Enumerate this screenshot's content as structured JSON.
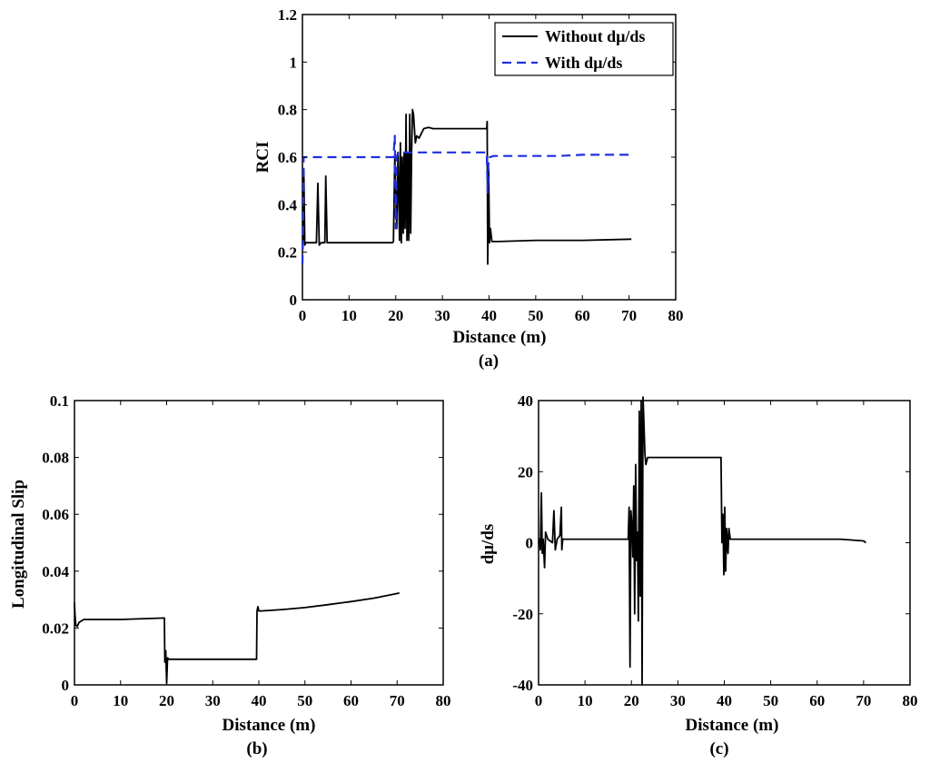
{
  "chart_data": [
    {
      "id": "a",
      "type": "line",
      "caption": "(a)",
      "xlabel": "Distance (m)",
      "ylabel": "RCI",
      "xlim": [
        0,
        80
      ],
      "ylim": [
        0,
        1.2
      ],
      "xticks": [
        0,
        10,
        20,
        30,
        40,
        50,
        60,
        70,
        80
      ],
      "yticks": [
        0,
        0.2,
        0.4,
        0.6,
        0.8,
        1,
        1.2
      ],
      "ytick_labels": [
        "0",
        "0.2",
        "0.4",
        "0.6",
        "0.8",
        "1",
        "1.2"
      ],
      "legend": {
        "position": "top-right"
      },
      "series": [
        {
          "name": "Without dμ/ds",
          "style": "solid",
          "color": "#000000",
          "x": [
            0,
            0.2,
            0.3,
            0.5,
            0.7,
            2,
            3,
            3.3,
            3.6,
            4,
            4.8,
            5,
            5.3,
            6,
            10,
            15,
            19.3,
            19.5,
            19.8,
            20.2,
            20.5,
            20.8,
            21,
            21.2,
            21.4,
            21.6,
            21.8,
            22,
            22.2,
            22.4,
            22.6,
            22.8,
            23,
            23.2,
            23.4,
            23.6,
            23.8,
            24,
            24.2,
            24.5,
            25,
            25.5,
            26,
            27,
            28,
            30,
            35,
            39.5,
            39.6,
            39.7,
            39.9,
            40.1,
            40.3,
            40.6,
            41,
            42,
            50,
            60,
            70.5
          ],
          "y": [
            0.24,
            0.26,
            0.55,
            0.23,
            0.24,
            0.24,
            0.24,
            0.49,
            0.23,
            0.24,
            0.24,
            0.52,
            0.24,
            0.24,
            0.24,
            0.24,
            0.24,
            0.245,
            0.6,
            0.3,
            0.62,
            0.25,
            0.66,
            0.24,
            0.6,
            0.28,
            0.62,
            0.3,
            0.78,
            0.25,
            0.62,
            0.25,
            0.78,
            0.28,
            0.62,
            0.8,
            0.78,
            0.72,
            0.66,
            0.69,
            0.68,
            0.7,
            0.72,
            0.725,
            0.72,
            0.72,
            0.72,
            0.72,
            0.75,
            0.15,
            0.55,
            0.24,
            0.3,
            0.245,
            0.245,
            0.245,
            0.25,
            0.25,
            0.255
          ]
        },
        {
          "name": "With dμ/ds",
          "style": "dashed",
          "color": "#1f2fe0",
          "x": [
            0,
            0.15,
            0.25,
            0.3,
            0.5,
            5,
            10,
            15,
            19.5,
            19.8,
            20,
            20.2,
            20.5,
            25,
            30,
            35,
            39.5,
            39.7,
            39.9,
            40.2,
            41,
            45,
            50,
            55,
            60,
            65,
            70.5
          ],
          "y": [
            0.15,
            0.3,
            0.6,
            0.6,
            0.6,
            0.6,
            0.6,
            0.6,
            0.6,
            0.69,
            0.3,
            0.6,
            0.62,
            0.62,
            0.62,
            0.62,
            0.62,
            0.45,
            0.6,
            0.6,
            0.605,
            0.605,
            0.605,
            0.605,
            0.61,
            0.61,
            0.61
          ]
        }
      ]
    },
    {
      "id": "b",
      "type": "line",
      "caption": "(b)",
      "xlabel": "Distance (m)",
      "ylabel": "Longitudinal Slip",
      "xlim": [
        0,
        80
      ],
      "ylim": [
        0,
        0.1
      ],
      "xticks": [
        0,
        10,
        20,
        30,
        40,
        50,
        60,
        70,
        80
      ],
      "yticks": [
        0,
        0.02,
        0.04,
        0.06,
        0.08,
        0.1
      ],
      "ytick_labels": [
        "0",
        "0.02",
        "0.04",
        "0.06",
        "0.08",
        "0.1"
      ],
      "series": [
        {
          "name": "Longitudinal Slip",
          "style": "solid",
          "color": "#000000",
          "x": [
            0,
            0.1,
            0.3,
            0.6,
            1,
            2,
            5,
            10,
            15,
            19.5,
            19.6,
            19.8,
            20,
            20.2,
            20.5,
            21,
            25,
            30,
            35,
            39.5,
            39.6,
            39.8,
            40,
            40.5,
            45,
            50,
            55,
            60,
            65,
            70.5
          ],
          "y": [
            0.029,
            0.025,
            0.021,
            0.0205,
            0.022,
            0.023,
            0.023,
            0.023,
            0.0233,
            0.0235,
            0.008,
            0.012,
            0.0005,
            0.0095,
            0.009,
            0.009,
            0.009,
            0.009,
            0.009,
            0.009,
            0.026,
            0.0275,
            0.026,
            0.026,
            0.0265,
            0.0272,
            0.0282,
            0.0293,
            0.0305,
            0.0323
          ]
        }
      ]
    },
    {
      "id": "c",
      "type": "line",
      "caption": "(c)",
      "xlabel": "Distance (m)",
      "ylabel": "dμ/ds",
      "xlim": [
        0,
        80
      ],
      "ylim": [
        -40,
        40
      ],
      "xticks": [
        0,
        10,
        20,
        30,
        40,
        50,
        60,
        70,
        80
      ],
      "yticks": [
        -40,
        -20,
        0,
        20,
        40
      ],
      "ytick_labels": [
        "-40",
        "-20",
        "0",
        "20",
        "40"
      ],
      "series": [
        {
          "name": "dμ/ds",
          "style": "solid",
          "color": "#000000",
          "x": [
            0,
            0.2,
            0.4,
            0.6,
            0.8,
            1,
            1.3,
            1.5,
            2,
            3,
            3.3,
            3.6,
            4,
            4.6,
            4.9,
            5,
            5.2,
            6,
            10,
            15,
            19.3,
            19.5,
            19.7,
            19.9,
            20.1,
            20.3,
            20.5,
            20.7,
            20.9,
            21.1,
            21.3,
            21.5,
            21.7,
            21.9,
            22.1,
            22.3,
            22.5,
            22.7,
            22.9,
            23.1,
            23.3,
            23.5,
            23.8,
            24,
            24.3,
            25,
            26,
            28,
            30,
            35,
            39.3,
            39.5,
            39.7,
            39.9,
            40.1,
            40.3,
            40.5,
            40.8,
            41,
            41.3,
            41.6,
            42,
            45,
            50,
            55,
            60,
            65,
            70,
            70.5
          ],
          "y": [
            0,
            1,
            -2,
            14,
            -3,
            1,
            -7,
            3,
            1,
            0,
            9,
            -2,
            1,
            2,
            10,
            -2,
            1,
            1,
            1,
            1,
            1,
            10,
            -35,
            9,
            5,
            -4,
            16,
            -20,
            22,
            -5,
            3,
            -22,
            37,
            -15,
            40,
            -40,
            41,
            33,
            25,
            22,
            23,
            24,
            24,
            24,
            24,
            24,
            24,
            24,
            24,
            24,
            24,
            0,
            8,
            -9,
            10,
            -8,
            4,
            -3,
            4,
            1,
            1,
            1,
            1,
            1,
            1,
            1,
            1,
            0.5,
            0
          ]
        }
      ]
    }
  ]
}
